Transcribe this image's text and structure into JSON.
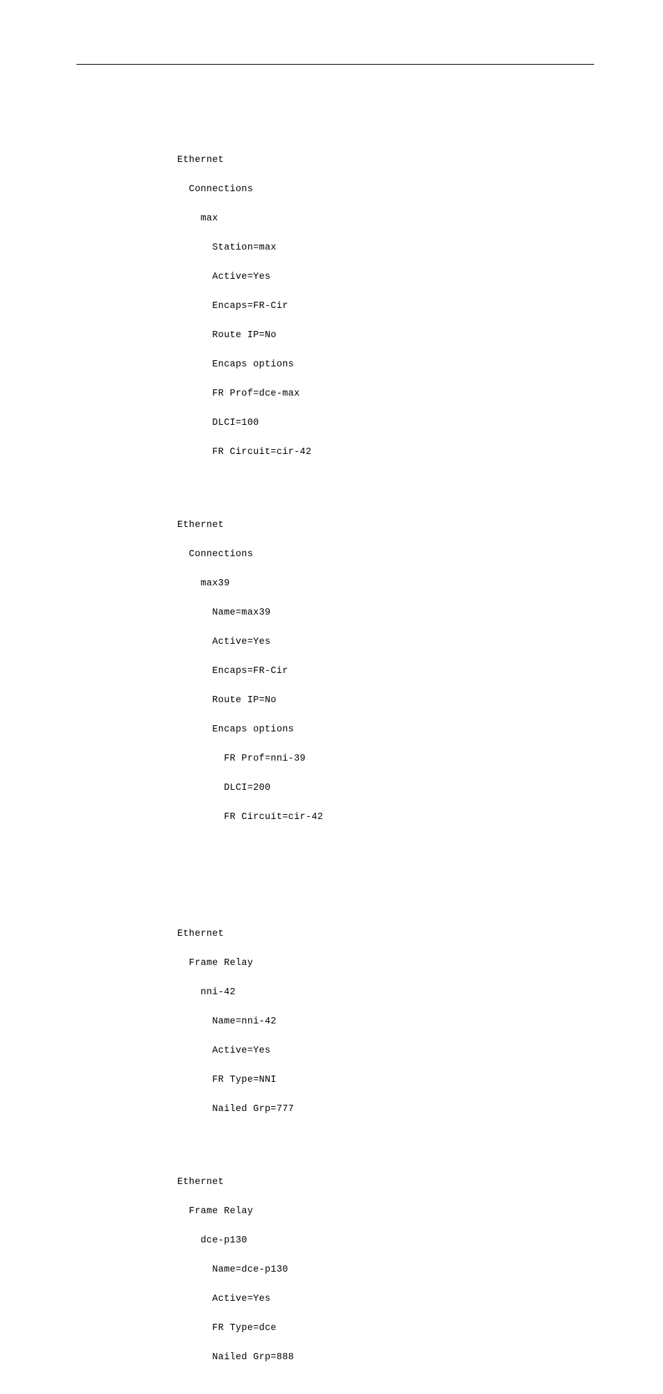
{
  "block1": {
    "line1": "Ethernet",
    "line2": "  Connections",
    "line3": "    max",
    "line4": "      Station=max",
    "line5": "      Active=Yes",
    "line6": "      Encaps=FR-Cir",
    "line7": "      Route IP=No",
    "line8": "      Encaps options",
    "line9": "      FR Prof=dce-max",
    "line10": "      DLCI=100",
    "line11": "      FR Circuit=cir-42"
  },
  "block2": {
    "line1": "Ethernet",
    "line2": "  Connections",
    "line3": "    max39",
    "line4": "      Name=max39",
    "line5": "      Active=Yes",
    "line6": "      Encaps=FR-Cir",
    "line7": "      Route IP=No",
    "line8": "      Encaps options",
    "line9": "        FR Prof=nni-39",
    "line10": "        DLCI=200",
    "line11": "        FR Circuit=cir-42"
  },
  "block3": {
    "line1": "Ethernet",
    "line2": "  Frame Relay",
    "line3": "    nni-42",
    "line4": "      Name=nni-42",
    "line5": "      Active=Yes",
    "line6": "      FR Type=NNI",
    "line7": "      Nailed Grp=777"
  },
  "block4": {
    "line1": "Ethernet",
    "line2": "  Frame Relay",
    "line3": "    dce-p130",
    "line4": "      Name=dce-p130",
    "line5": "      Active=Yes",
    "line6": "      FR Type=dce",
    "line7": "      Nailed Grp=888"
  }
}
